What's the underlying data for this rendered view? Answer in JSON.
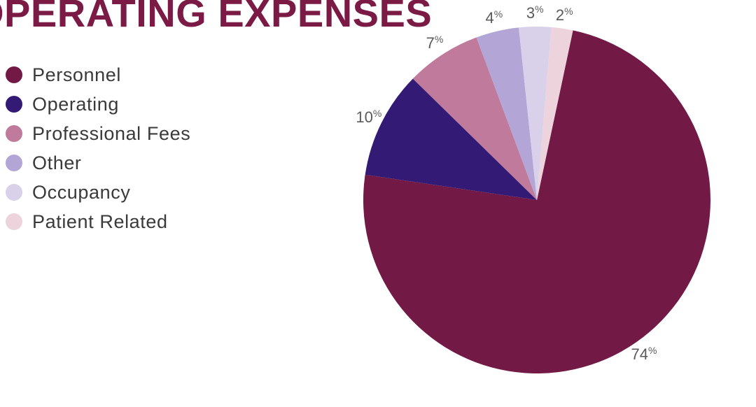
{
  "chart_data": {
    "type": "pie",
    "title": "OPERATING EXPENSES",
    "categories": [
      "Personnel",
      "Operating",
      "Professional Fees",
      "Other",
      "Occupancy",
      "Patient Related"
    ],
    "values": [
      74,
      10,
      7,
      4,
      3,
      2
    ],
    "value_labels": [
      "74",
      "10",
      "7",
      "4",
      "3",
      "2"
    ],
    "value_suffix": "%",
    "colors": [
      "#721a45",
      "#331b75",
      "#c07a9b",
      "#b3a6d6",
      "#d9d0ea",
      "#ecd3dc"
    ],
    "legend_placement": "left"
  }
}
